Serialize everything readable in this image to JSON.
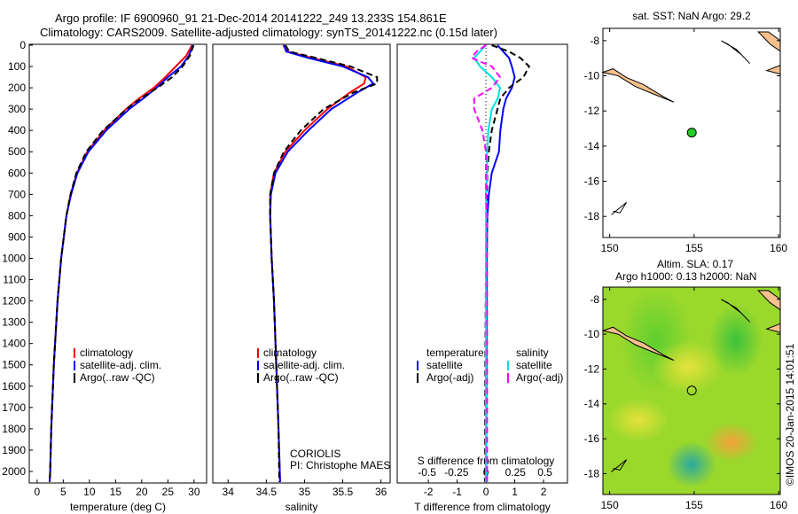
{
  "title_line1": "Argo profile: IF 6900960_91 21-Dec-2014 20141222_249 13.233S 154.861E",
  "title_line2": "Climatology: CARS2009. Satellite-adjusted climatology: synTS_20141222.nc (0.15d later)",
  "watermark": "©IMOS 20-Jan-2015 14:01:51",
  "chart_data": [
    {
      "type": "line",
      "title": "",
      "xlabel": "temperature (deg C)",
      "ylabel": "",
      "xlim": [
        -1.5,
        32.4
      ],
      "ylim": [
        2050,
        0
      ],
      "xticks": [
        0,
        5,
        10,
        15,
        20,
        25,
        30
      ],
      "yticks": [
        0,
        100,
        200,
        300,
        400,
        500,
        600,
        700,
        800,
        900,
        1000,
        1100,
        1200,
        1300,
        1400,
        1500,
        1600,
        1700,
        1800,
        1900,
        2000
      ],
      "depth": [
        0,
        50,
        100,
        150,
        200,
        250,
        300,
        400,
        500,
        600,
        700,
        800,
        1000,
        1200,
        1500,
        1800,
        2000,
        2050
      ],
      "series": [
        {
          "name": "climatology",
          "color": "#ff0000",
          "values": [
            29.6,
            28.5,
            26.5,
            24.5,
            22.3,
            19.5,
            17.0,
            12.8,
            9.6,
            7.6,
            6.4,
            5.6,
            4.6,
            3.9,
            3.2,
            2.7,
            2.5,
            2.4
          ]
        },
        {
          "name": "satellite-adj. clim.",
          "color": "#0000ff",
          "values": [
            29.8,
            29.0,
            27.5,
            25.0,
            22.8,
            20.3,
            17.6,
            13.2,
            9.8,
            7.7,
            6.5,
            5.6,
            4.6,
            3.9,
            3.2,
            2.7,
            2.5,
            2.4
          ]
        },
        {
          "name": "Argo(..raw -QC)",
          "color": "#000000",
          "dash": true,
          "values": [
            29.9,
            29.2,
            27.8,
            25.8,
            23.0,
            19.8,
            17.1,
            12.6,
            9.4,
            7.5,
            6.4,
            5.6,
            4.6,
            3.9,
            3.2,
            2.7,
            2.5,
            2.4
          ]
        }
      ],
      "legend": [
        "climatology",
        "satellite-adj. clim.",
        "Argo(..raw -QC)"
      ]
    },
    {
      "type": "line",
      "xlabel": "salinity",
      "xlim": [
        33.8,
        36.12
      ],
      "ylim": [
        2050,
        0
      ],
      "xticks": [
        34,
        34.5,
        35,
        35.5,
        36
      ],
      "depth": [
        0,
        30,
        60,
        100,
        150,
        180,
        220,
        300,
        400,
        500,
        600,
        700,
        800,
        1000,
        1200,
        1500,
        1800,
        2050
      ],
      "series": [
        {
          "name": "climatology",
          "color": "#ff0000",
          "values": [
            34.72,
            34.78,
            35.1,
            35.55,
            35.8,
            35.78,
            35.6,
            35.3,
            35.0,
            34.75,
            34.6,
            34.55,
            34.55,
            34.57,
            34.6,
            34.63,
            34.66,
            34.68
          ]
        },
        {
          "name": "satellite-adj. clim.",
          "color": "#0000ff",
          "values": [
            34.73,
            34.76,
            35.05,
            35.5,
            35.83,
            35.9,
            35.7,
            35.35,
            35.05,
            34.78,
            34.62,
            34.56,
            34.55,
            34.57,
            34.6,
            34.63,
            34.66,
            34.68
          ]
        },
        {
          "name": "Argo(..raw -QC)",
          "color": "#000000",
          "dash": true,
          "values": [
            34.75,
            34.8,
            35.15,
            35.6,
            35.95,
            35.95,
            35.65,
            35.25,
            34.95,
            34.73,
            34.6,
            34.55,
            34.55,
            34.57,
            34.6,
            34.63,
            34.66,
            34.67
          ]
        }
      ],
      "legend": [
        "climatology",
        "satellite-adj. clim.",
        "Argo(..raw -QC)"
      ],
      "annotation": [
        "CORIOLIS",
        "PI: Christophe MAES"
      ]
    },
    {
      "type": "line",
      "xlabel": "T difference from climatology",
      "xlabel2": "S difference from climatology",
      "xlim": [
        -3.08,
        2.83
      ],
      "ylim": [
        2050,
        0
      ],
      "xticks": [
        -2,
        -1,
        0,
        1,
        2
      ],
      "xticks2": [
        -0.5,
        -0.25,
        0,
        0.25,
        0.5
      ],
      "depth": [
        0,
        30,
        60,
        100,
        150,
        200,
        250,
        300,
        400,
        500,
        600,
        700,
        800,
        1000,
        1500,
        2050
      ],
      "series": [
        {
          "name": "temperature satellite",
          "color": "#0000ff",
          "axis": "T",
          "values": [
            0.4,
            0.6,
            0.8,
            0.9,
            1.0,
            0.9,
            0.7,
            0.6,
            0.5,
            0.45,
            0.2,
            0.1,
            0.05,
            0.03,
            0.02,
            0.0
          ]
        },
        {
          "name": "temperature Argo(-adj)",
          "color": "#000000",
          "dash": true,
          "axis": "T",
          "values": [
            0.2,
            0.8,
            1.2,
            1.5,
            1.3,
            0.8,
            0.5,
            0.4,
            0.2,
            0.1,
            0.05,
            0.03,
            0.02,
            0.0,
            -0.02,
            -0.03
          ]
        },
        {
          "name": "salinity satellite",
          "color": "#00e0e0",
          "axis": "S",
          "values": [
            0.0,
            -0.05,
            -0.1,
            -0.05,
            0.05,
            0.12,
            0.1,
            0.05,
            0.02,
            0.01,
            0.01,
            0.0,
            0.0,
            0.0,
            0.0,
            0.0
          ]
        },
        {
          "name": "salinity Argo(-adj)",
          "color": "#ff00ff",
          "dash": true,
          "axis": "S",
          "values": [
            0.0,
            -0.08,
            -0.12,
            0.05,
            0.12,
            0.05,
            -0.1,
            -0.1,
            -0.03,
            0.0,
            0.0,
            0.0,
            0.01,
            0.01,
            0.01,
            0.01
          ]
        }
      ],
      "legend_left": [
        "temperature",
        "satellite",
        "Argo(-adj)"
      ],
      "legend_right": [
        "salinity",
        "satellite",
        "Argo(-adj)"
      ]
    },
    {
      "type": "scatter",
      "title": "sat. SST: NaN Argo: 29.2",
      "xlim": [
        149.6,
        160.1
      ],
      "ylim": [
        -19.2,
        -7.3
      ],
      "xticks": [
        150,
        155,
        160
      ],
      "yticks": [
        -8,
        -10,
        -12,
        -14,
        -16,
        -18
      ],
      "points": [
        {
          "lon": 154.861,
          "lat": -13.233,
          "color": "#22cc22"
        }
      ]
    },
    {
      "type": "heatmap",
      "title_line1": "Altim. SLA: 0.17",
      "title_line2": "Argo h1000: 0.13 h2000: NaN",
      "xlim": [
        149.6,
        160.1
      ],
      "ylim": [
        -19.2,
        -7.3
      ],
      "xticks": [
        150,
        155,
        160
      ],
      "yticks": [
        -8,
        -10,
        -12,
        -14,
        -16,
        -18
      ],
      "points": [
        {
          "lon": 154.861,
          "lat": -13.233
        }
      ]
    }
  ]
}
